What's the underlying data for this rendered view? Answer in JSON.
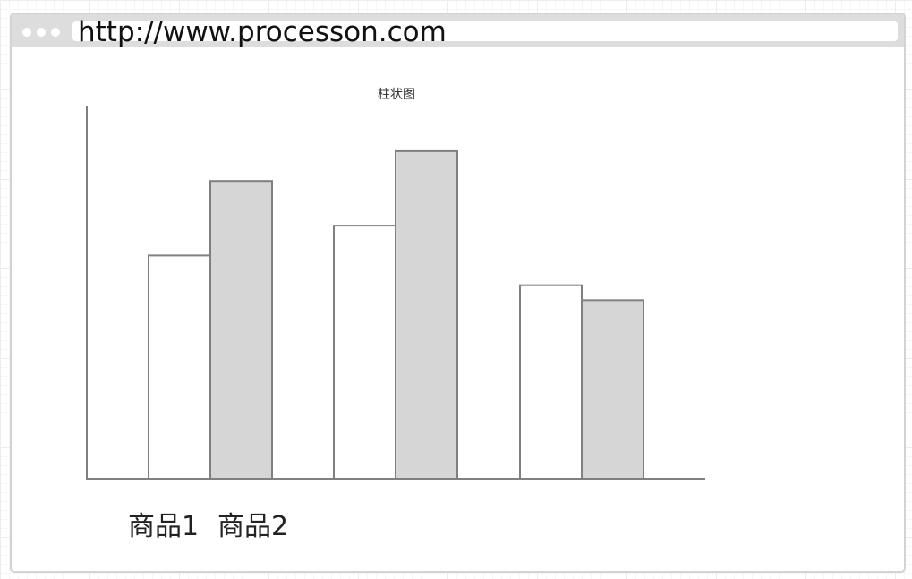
{
  "browser": {
    "url": "http://www.processon.com"
  },
  "chart_data": {
    "type": "bar",
    "title": "柱状图",
    "categories": [
      "",
      "",
      ""
    ],
    "series": [
      {
        "name": "商品1",
        "values": [
          6.0,
          6.8,
          5.2
        ],
        "fill": "#ffffff"
      },
      {
        "name": "商品2",
        "values": [
          8.0,
          8.8,
          4.8
        ],
        "fill": "#d6d6d6"
      }
    ],
    "ylim": [
      0,
      10
    ],
    "legend_position": "bottom-left",
    "grid": false,
    "colors": {
      "axis": "#808080",
      "bar_stroke": "#808080"
    }
  }
}
